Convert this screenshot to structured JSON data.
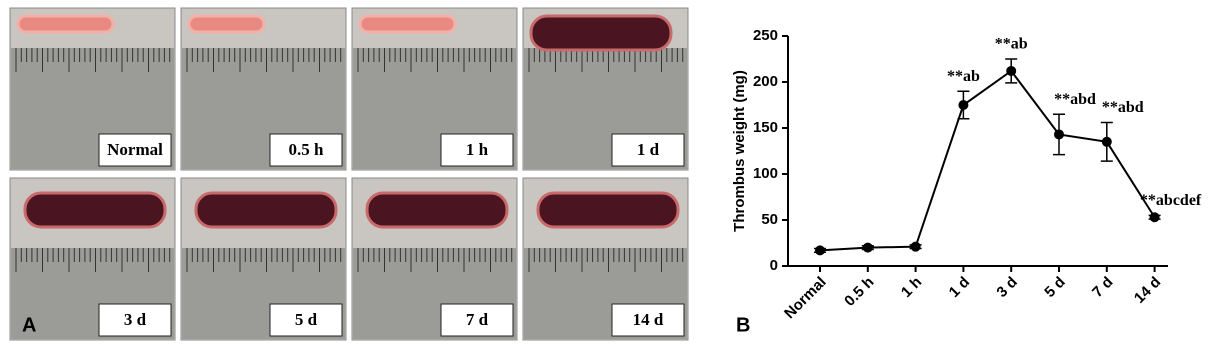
{
  "figure_a": {
    "label": "A",
    "panels": [
      {
        "label": "Normal"
      },
      {
        "label": "0.5 h"
      },
      {
        "label": "1 h"
      },
      {
        "label": "1 d"
      },
      {
        "label": "3 d"
      },
      {
        "label": "5 d"
      },
      {
        "label": "7 d"
      },
      {
        "label": "14 d"
      }
    ]
  },
  "chart_data": {
    "type": "line",
    "panel_label": "B",
    "y_label": "Thrombus weight (mg)",
    "categories": [
      "Normal",
      "0.5 h",
      "1 h",
      "1 d",
      "3 d",
      "5 d",
      "7 d",
      "14 d"
    ],
    "values": [
      17,
      20,
      21,
      175,
      212,
      143,
      135,
      53
    ],
    "errors": [
      2,
      2,
      2,
      15,
      13,
      22,
      21,
      2
    ],
    "annotations": [
      null,
      null,
      null,
      "**ab",
      "**ab",
      "**abd",
      "**abd",
      "**abcdef"
    ],
    "color": "#000000",
    "ylim": [
      0,
      250
    ],
    "yticks": [
      0,
      50,
      100,
      150,
      200,
      250
    ]
  }
}
